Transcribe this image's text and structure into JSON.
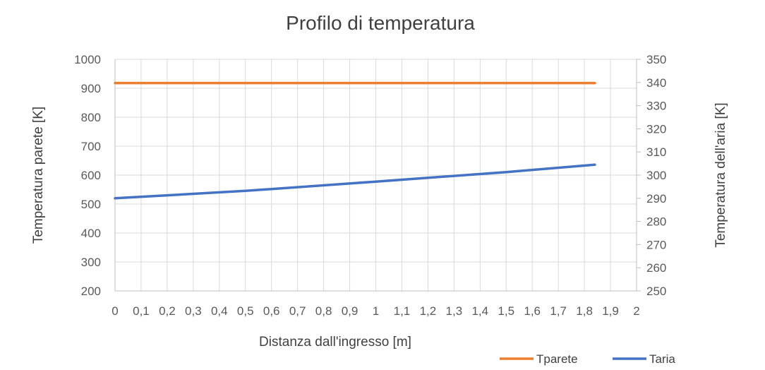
{
  "chart_data": {
    "type": "line",
    "title": "Profilo di temperatura",
    "xlabel": "Distanza dall'ingresso  [m]",
    "ylabel": "Temperatura parete [K]",
    "y2label": "Temperatura dell'aria [K]",
    "xlim": [
      0,
      2
    ],
    "ylim": [
      200,
      1000
    ],
    "y2lim": [
      250,
      350
    ],
    "x_ticks": [
      "0",
      "0,1",
      "0,2",
      "0,3",
      "0,4",
      "0,5",
      "0,6",
      "0,7",
      "0,8",
      "0,9",
      "1",
      "1,1",
      "1,2",
      "1,3",
      "1,4",
      "1,5",
      "1,6",
      "1,7",
      "1,8",
      "1,9",
      "2"
    ],
    "y_ticks": [
      "200",
      "300",
      "400",
      "500",
      "600",
      "700",
      "800",
      "900",
      "1000"
    ],
    "y2_ticks": [
      "250",
      "260",
      "270",
      "280",
      "290",
      "300",
      "310",
      "320",
      "330",
      "340",
      "350"
    ],
    "grid": true,
    "legend_position": "bottom-right",
    "series": [
      {
        "name": "Tparete",
        "axis": "left",
        "color": "#ED7D31",
        "x": [
          0,
          1.84
        ],
        "y": [
          918,
          918
        ]
      },
      {
        "name": "Taria",
        "axis": "right",
        "color": "#4472C4",
        "x": [
          0,
          0.5,
          1.0,
          1.5,
          1.84
        ],
        "y": [
          290,
          293.2,
          297.2,
          301.3,
          304.5
        ]
      }
    ]
  }
}
